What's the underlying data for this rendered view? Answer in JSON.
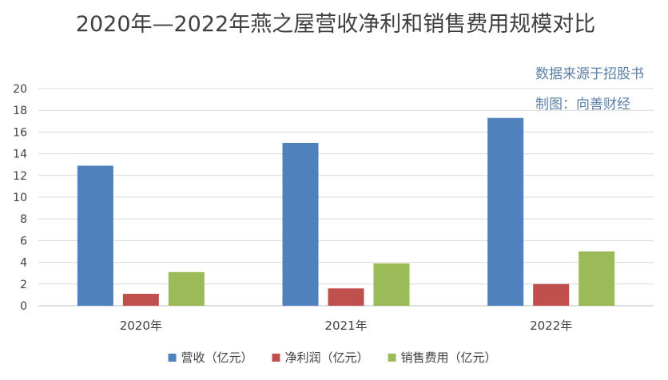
{
  "chart_data": {
    "type": "bar",
    "title": "2020年—2022年燕之屋营收净利和销售费用规模对比",
    "annotations": [
      "数据来源于招股书",
      "制图：向善财经"
    ],
    "categories": [
      "2020年",
      "2021年",
      "2022年"
    ],
    "series": [
      {
        "name": "营收（亿元）",
        "values": [
          12.9,
          15.0,
          17.3
        ],
        "color": "#4f81bd"
      },
      {
        "name": "净利润（亿元）",
        "values": [
          1.1,
          1.6,
          2.0
        ],
        "color": "#c0504d"
      },
      {
        "name": "销售费用（亿元）",
        "values": [
          3.1,
          3.9,
          5.0
        ],
        "color": "#9bbb59"
      }
    ],
    "ylim": [
      0,
      20
    ],
    "yticks": [
      0,
      2,
      4,
      6,
      8,
      10,
      12,
      14,
      16,
      18,
      20
    ],
    "grid": true,
    "legend": "bottom"
  }
}
